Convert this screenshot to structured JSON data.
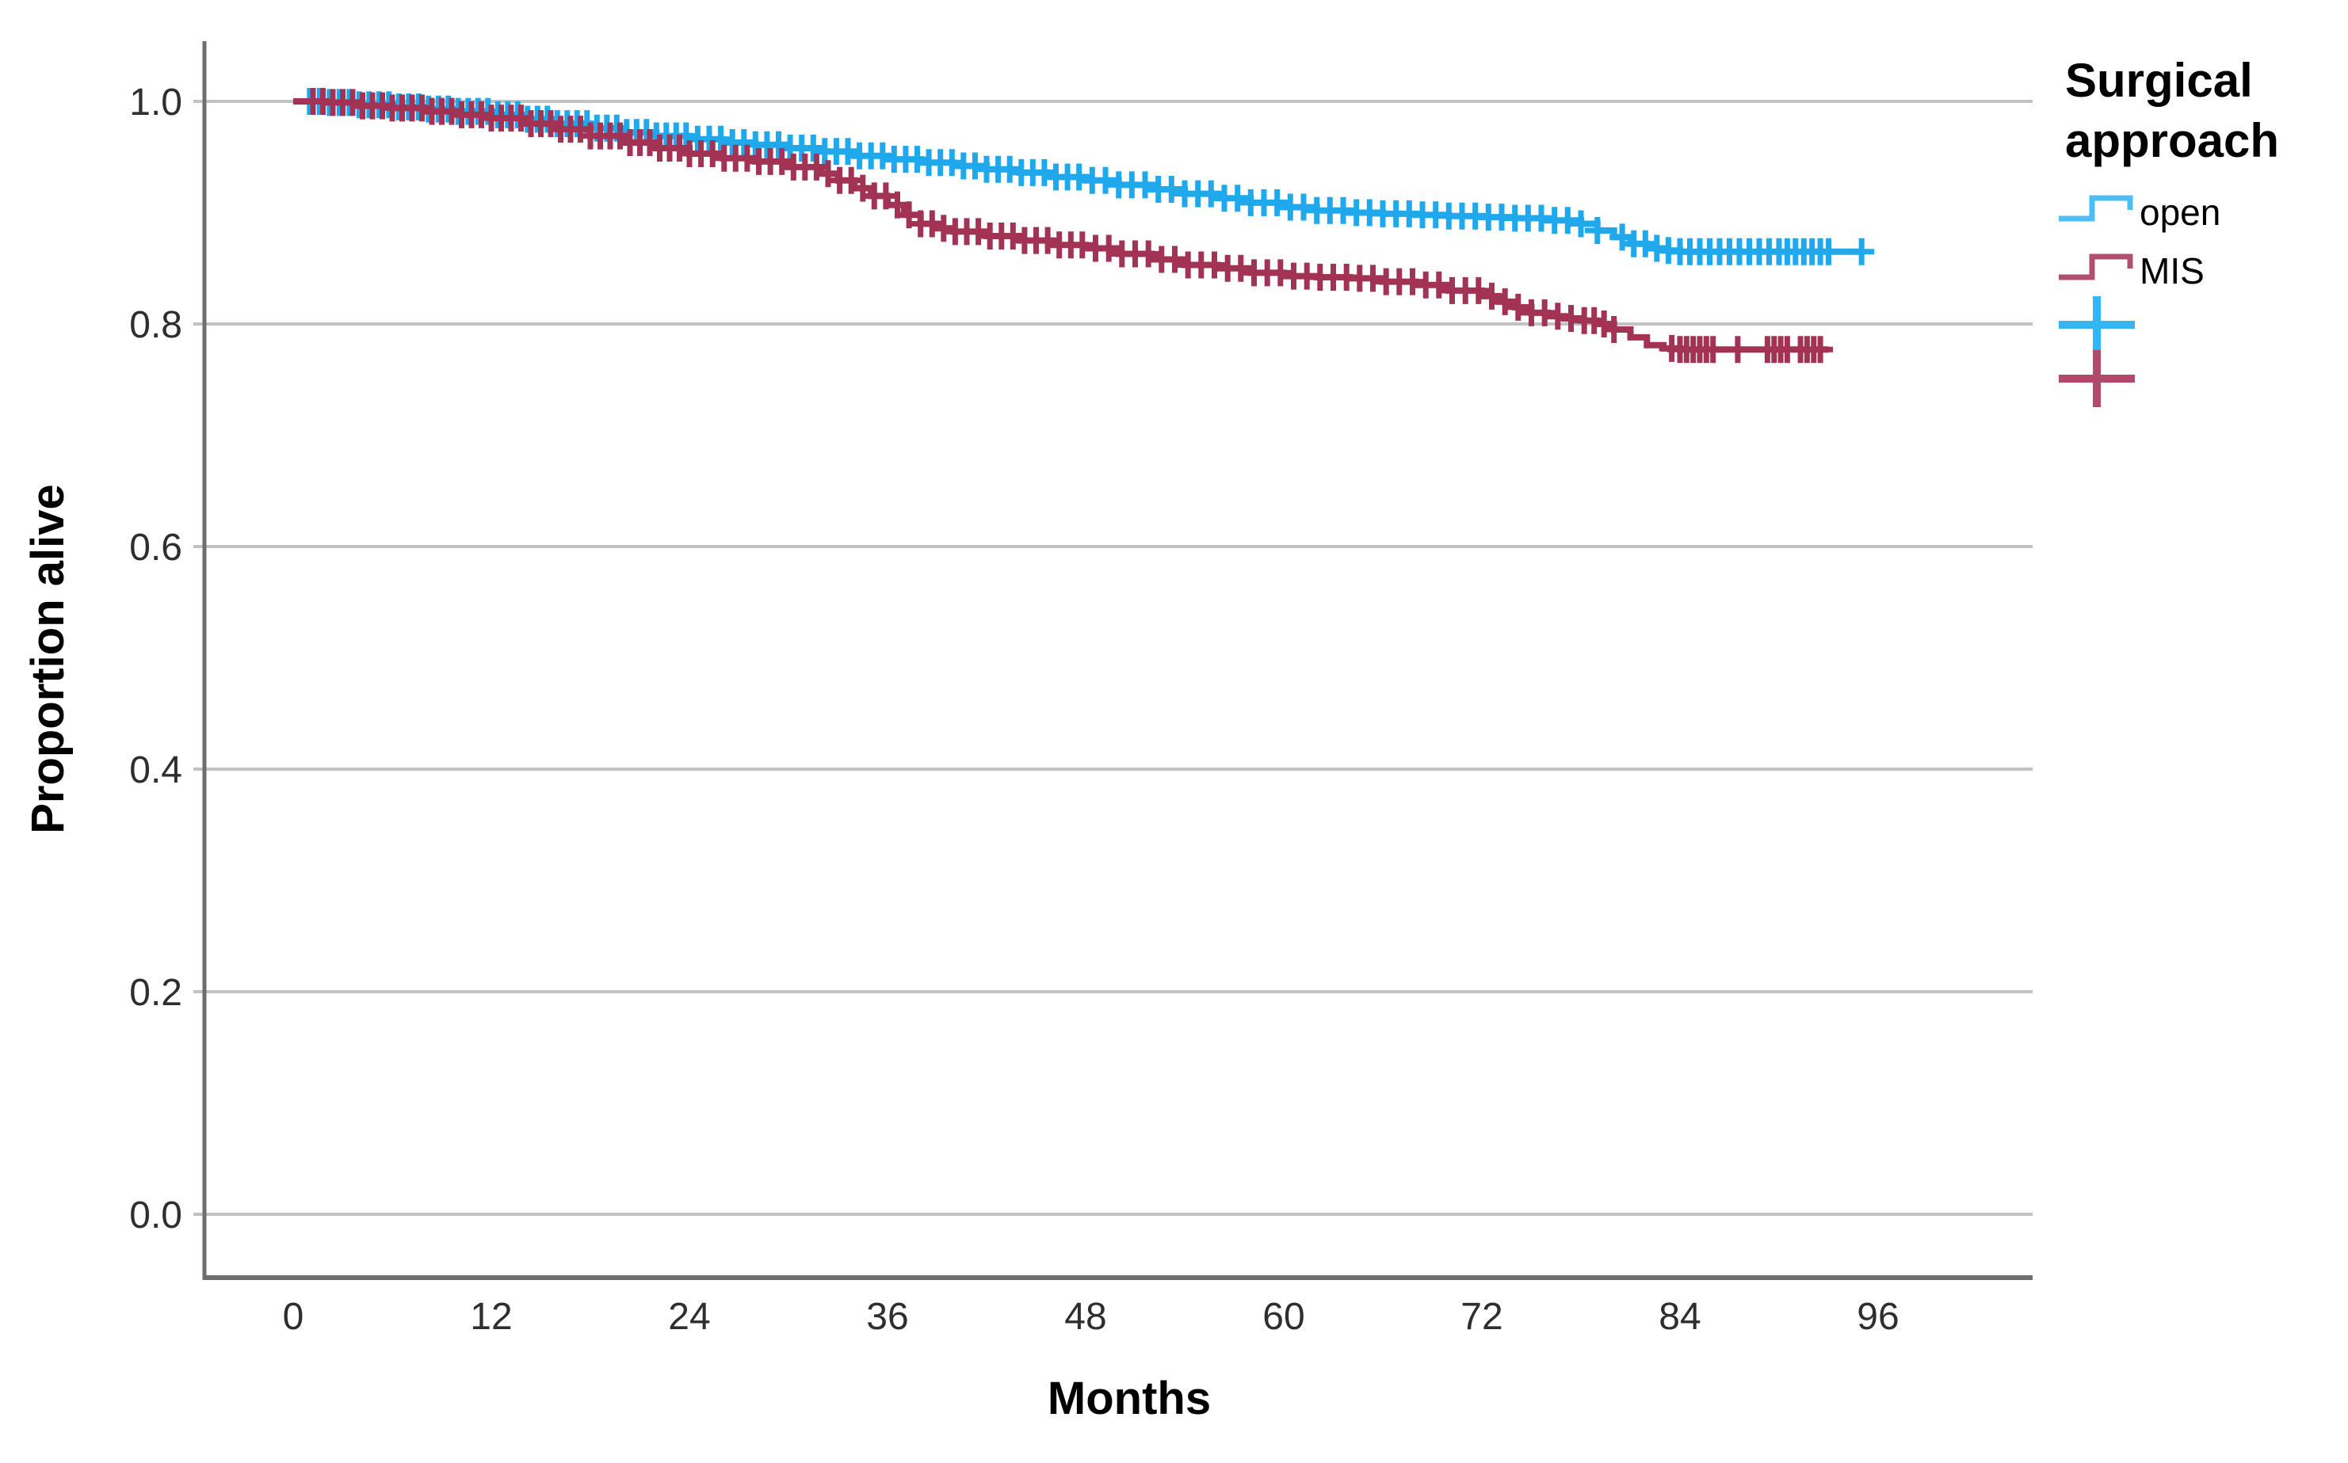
{
  "chart_data": {
    "type": "line",
    "subtype": "kaplan-meier-step-survival",
    "title": "",
    "xlabel": "Months",
    "ylabel": "Proportion alive",
    "x_ticks": [
      0,
      12,
      24,
      36,
      48,
      60,
      72,
      84,
      96
    ],
    "y_ticks": [
      "1.0",
      "0.8",
      "0.6",
      "0.4",
      "0.2",
      "0.0"
    ],
    "xlim": [
      -5.4,
      105.4
    ],
    "ylim": [
      -0.057,
      1.054
    ],
    "grid": "horizontal",
    "grid_color": "#c2c2c2",
    "axis_color": "#6e6e6e",
    "legend": {
      "title": [
        "Surgical",
        "approach"
      ],
      "position": "right",
      "entries": [
        {
          "label": "open",
          "color": "#4dbdf5",
          "type": "step-line"
        },
        {
          "label": "MIS",
          "color": "#b05070",
          "type": "step-line"
        },
        {
          "label": "",
          "color": "#33b7f4",
          "type": "censor-cross"
        },
        {
          "label": "",
          "color": "#b04b6b",
          "type": "censor-cross"
        }
      ]
    },
    "series": [
      {
        "name": "open",
        "color": "#1fa8ec",
        "steps": [
          [
            0,
            1.0
          ],
          [
            2,
            0.999
          ],
          [
            4,
            0.997
          ],
          [
            6,
            0.995
          ],
          [
            8,
            0.993
          ],
          [
            10,
            0.991
          ],
          [
            12,
            0.988
          ],
          [
            14,
            0.984
          ],
          [
            16,
            0.98
          ],
          [
            18,
            0.976
          ],
          [
            20,
            0.972
          ],
          [
            22,
            0.969
          ],
          [
            24,
            0.966
          ],
          [
            26,
            0.963
          ],
          [
            28,
            0.961
          ],
          [
            30,
            0.958
          ],
          [
            32,
            0.955
          ],
          [
            34,
            0.951
          ],
          [
            36,
            0.948
          ],
          [
            38,
            0.945
          ],
          [
            40,
            0.942
          ],
          [
            42,
            0.939
          ],
          [
            44,
            0.936
          ],
          [
            46,
            0.932
          ],
          [
            48,
            0.929
          ],
          [
            50,
            0.925
          ],
          [
            52,
            0.921
          ],
          [
            54,
            0.917
          ],
          [
            56,
            0.913
          ],
          [
            58,
            0.909
          ],
          [
            60,
            0.905
          ],
          [
            62,
            0.902
          ],
          [
            64,
            0.9
          ],
          [
            66,
            0.899
          ],
          [
            68,
            0.898
          ],
          [
            70,
            0.897
          ],
          [
            72,
            0.896
          ],
          [
            74,
            0.895
          ],
          [
            76,
            0.893
          ],
          [
            78,
            0.89
          ],
          [
            79,
            0.884
          ],
          [
            80,
            0.878
          ],
          [
            81,
            0.872
          ],
          [
            82,
            0.868
          ],
          [
            83,
            0.866
          ],
          [
            84,
            0.865
          ],
          [
            95,
            0.865
          ]
        ],
        "censor_times": [
          1,
          1.6,
          2.2,
          2.8,
          3.4,
          4,
          4.6,
          5.2,
          5.8,
          6.4,
          7,
          7.6,
          8.2,
          8.8,
          9.4,
          10,
          10.6,
          11.2,
          11.8,
          12.4,
          13,
          13.6,
          14.2,
          14.8,
          15.4,
          16,
          16.6,
          17.2,
          17.8,
          18.4,
          19,
          19.6,
          20.2,
          20.8,
          21.4,
          22,
          22.6,
          23.2,
          23.8,
          24.5,
          25.2,
          25.9,
          26.6,
          27.3,
          28,
          28.7,
          29.4,
          30.1,
          30.8,
          31.5,
          32.2,
          32.9,
          33.6,
          34.3,
          35,
          35.7,
          36.4,
          37.1,
          37.8,
          38.5,
          39.2,
          39.9,
          40.6,
          41.3,
          42,
          42.7,
          43.4,
          44.1,
          44.8,
          45.5,
          46.2,
          46.9,
          47.6,
          48.4,
          49.2,
          50,
          50.8,
          51.6,
          52.4,
          53.2,
          54,
          54.8,
          55.6,
          56.4,
          57.2,
          58,
          58.8,
          59.6,
          60.4,
          61.2,
          62,
          62.8,
          63.6,
          64.4,
          65.2,
          66,
          66.8,
          67.6,
          68.4,
          69.2,
          70,
          70.8,
          71.6,
          72.4,
          73.2,
          74,
          74.8,
          75.6,
          76.4,
          77.2,
          78,
          79,
          80.5,
          81.2,
          81.9,
          82.6,
          83.3,
          84,
          84.6,
          85.2,
          85.8,
          86.4,
          87,
          87.6,
          88.2,
          88.8,
          89.4,
          90,
          90.5,
          91,
          91.5,
          92,
          92.5,
          93,
          95
        ]
      },
      {
        "name": "MIS",
        "color": "#a23355",
        "steps": [
          [
            0,
            1.0
          ],
          [
            2,
            0.999
          ],
          [
            4,
            0.996
          ],
          [
            6,
            0.994
          ],
          [
            8,
            0.991
          ],
          [
            10,
            0.988
          ],
          [
            12,
            0.985
          ],
          [
            14,
            0.98
          ],
          [
            16,
            0.975
          ],
          [
            18,
            0.969
          ],
          [
            20,
            0.963
          ],
          [
            22,
            0.958
          ],
          [
            24,
            0.953
          ],
          [
            26,
            0.949
          ],
          [
            28,
            0.946
          ],
          [
            30,
            0.941
          ],
          [
            32,
            0.935
          ],
          [
            33,
            0.929
          ],
          [
            34,
            0.922
          ],
          [
            35,
            0.915
          ],
          [
            36,
            0.907
          ],
          [
            37,
            0.898
          ],
          [
            38,
            0.89
          ],
          [
            39,
            0.886
          ],
          [
            40,
            0.883
          ],
          [
            42,
            0.879
          ],
          [
            44,
            0.875
          ],
          [
            46,
            0.871
          ],
          [
            48,
            0.868
          ],
          [
            50,
            0.863
          ],
          [
            52,
            0.858
          ],
          [
            54,
            0.853
          ],
          [
            56,
            0.85
          ],
          [
            58,
            0.846
          ],
          [
            60,
            0.843
          ],
          [
            62,
            0.842
          ],
          [
            64,
            0.841
          ],
          [
            66,
            0.838
          ],
          [
            68,
            0.835
          ],
          [
            70,
            0.83
          ],
          [
            72,
            0.825
          ],
          [
            73,
            0.82
          ],
          [
            74,
            0.815
          ],
          [
            75,
            0.81
          ],
          [
            76,
            0.807
          ],
          [
            77,
            0.805
          ],
          [
            78,
            0.803
          ],
          [
            79,
            0.8
          ],
          [
            80,
            0.795
          ],
          [
            81,
            0.788
          ],
          [
            82,
            0.781
          ],
          [
            83,
            0.778
          ],
          [
            84,
            0.777
          ],
          [
            93,
            0.777
          ]
        ],
        "censor_times": [
          1.2,
          1.8,
          2.4,
          3,
          3.6,
          4.2,
          4.8,
          5.4,
          6,
          6.6,
          7.2,
          7.8,
          8.4,
          9,
          9.6,
          10.2,
          10.8,
          11.4,
          12,
          12.6,
          13.2,
          13.8,
          14.4,
          15,
          15.6,
          16.2,
          16.8,
          17.4,
          18,
          18.6,
          19.2,
          19.8,
          20.4,
          21,
          21.6,
          22.2,
          22.8,
          23.4,
          24,
          24.7,
          25.4,
          26.1,
          26.8,
          27.5,
          28.2,
          28.9,
          29.6,
          30.3,
          31,
          31.7,
          32.4,
          33.1,
          33.8,
          34.5,
          35.2,
          35.9,
          36.6,
          37.3,
          38,
          38.7,
          39.4,
          40.1,
          40.8,
          41.5,
          42.2,
          42.9,
          43.6,
          44.3,
          45,
          45.7,
          46.4,
          47.1,
          47.8,
          48.6,
          49.4,
          50.2,
          51,
          51.8,
          52.6,
          53.4,
          54.2,
          55,
          55.8,
          56.6,
          57.4,
          58.2,
          59,
          59.8,
          60.6,
          61.4,
          62.2,
          63,
          63.8,
          64.6,
          65.4,
          66.2,
          67,
          67.8,
          68.6,
          69.4,
          70.2,
          71,
          71.8,
          72.6,
          73.4,
          74.2,
          75,
          75.8,
          76.6,
          77.4,
          78.2,
          78.8,
          79.4,
          80,
          83.5,
          84,
          84.4,
          84.8,
          85.2,
          85.6,
          86,
          87.5,
          89.3,
          89.7,
          90.1,
          90.5,
          91.3,
          91.7,
          92.1,
          92.5
        ]
      }
    ]
  }
}
